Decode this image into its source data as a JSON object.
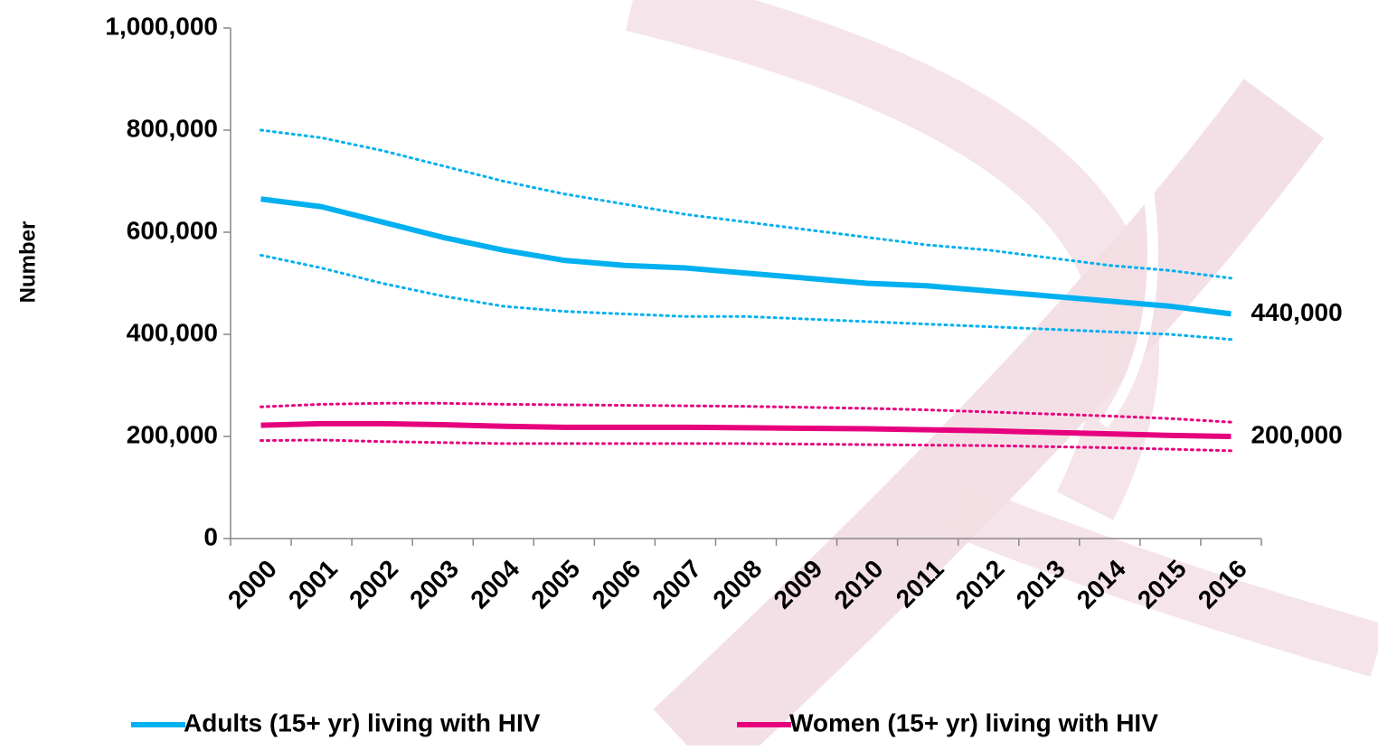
{
  "chart_data": {
    "type": "line",
    "y_axis_label": "Number",
    "categories": [
      "2000",
      "2001",
      "2002",
      "2003",
      "2004",
      "2005",
      "2006",
      "2007",
      "2008",
      "2009",
      "2010",
      "2011",
      "2012",
      "2013",
      "2014",
      "2015",
      "2016"
    ],
    "series": [
      {
        "name": "Adults (15+ yr) living with HIV",
        "color": "#00b0f0",
        "values": [
          665000,
          650000,
          620000,
          590000,
          565000,
          545000,
          535000,
          530000,
          520000,
          510000,
          500000,
          495000,
          485000,
          475000,
          465000,
          455000,
          440000
        ],
        "lower": [
          555000,
          530000,
          500000,
          475000,
          455000,
          445000,
          440000,
          435000,
          435000,
          430000,
          425000,
          420000,
          415000,
          410000,
          405000,
          400000,
          390000
        ],
        "upper": [
          800000,
          785000,
          760000,
          730000,
          700000,
          675000,
          655000,
          635000,
          620000,
          605000,
          590000,
          575000,
          565000,
          550000,
          535000,
          525000,
          510000
        ],
        "value_labels": [
          null,
          null,
          null,
          null,
          null,
          null,
          null,
          null,
          null,
          null,
          null,
          null,
          null,
          null,
          null,
          null,
          "440,000"
        ]
      },
      {
        "name": "Women (15+ yr) living with HIV",
        "color": "#e6007e",
        "values": [
          222000,
          225000,
          225000,
          223000,
          220000,
          218000,
          218000,
          218000,
          217000,
          216000,
          215000,
          213000,
          211000,
          208000,
          205000,
          202000,
          200000
        ],
        "lower": [
          192000,
          193000,
          190000,
          188000,
          186000,
          186000,
          186000,
          186000,
          186000,
          185000,
          184000,
          183000,
          182000,
          180000,
          178000,
          175000,
          172000
        ],
        "upper": [
          258000,
          263000,
          265000,
          265000,
          263000,
          262000,
          261000,
          260000,
          259000,
          257000,
          255000,
          252000,
          248000,
          244000,
          240000,
          235000,
          228000
        ],
        "value_labels": [
          null,
          null,
          null,
          null,
          null,
          null,
          null,
          null,
          null,
          null,
          null,
          null,
          null,
          null,
          null,
          null,
          "200,000"
        ]
      }
    ],
    "ylim": [
      0,
      1000000
    ],
    "yticks": [
      0,
      {
        "value": 200000,
        "label": "200,000"
      },
      {
        "value": 400000,
        "label": "400,000"
      },
      {
        "value": 600000,
        "label": "600,000"
      },
      {
        "value": 800000,
        "label": "800,000"
      },
      {
        "value": 1000000,
        "label": "1,000,000"
      }
    ],
    "grid": false
  }
}
